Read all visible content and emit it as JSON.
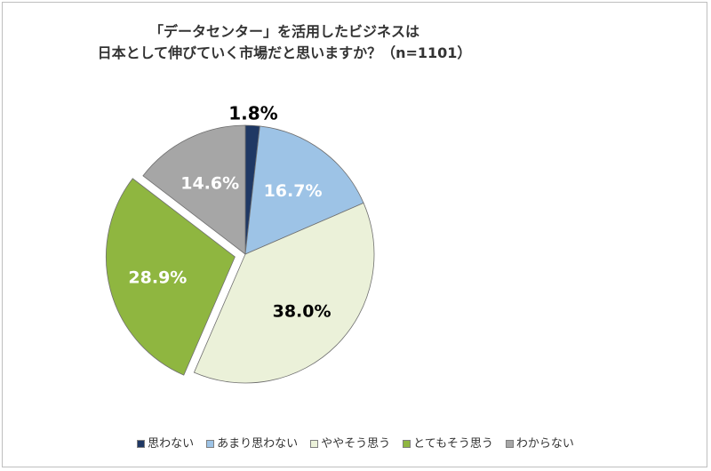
{
  "chart_data": {
    "type": "pie",
    "title_line1": "「データセンター」を活用したビジネスは",
    "title_line2": "日本として伸びていく市場だと思いますか？（n=1101）",
    "start_angle_deg": 0,
    "direction": "clockwise",
    "slices": [
      {
        "label": "思わない",
        "value": 1.8,
        "color": "#1f3864",
        "label_color": "#000000",
        "exploded": false
      },
      {
        "label": "あまり思わない",
        "value": 16.7,
        "color": "#9dc3e6",
        "label_color": "#ffffff",
        "exploded": false
      },
      {
        "label": "ややそう思う",
        "value": 38.0,
        "color": "#ebf1d9",
        "label_color": "#000000",
        "exploded": false
      },
      {
        "label": "とてもそう思う",
        "value": 28.9,
        "color": "#8fb640",
        "label_color": "#ffffff",
        "exploded": true
      },
      {
        "label": "わからない",
        "value": 14.6,
        "color": "#a6a6a6",
        "label_color": "#ffffff",
        "exploded": false
      }
    ],
    "value_format": "{v}%",
    "legend_position": "bottom"
  }
}
